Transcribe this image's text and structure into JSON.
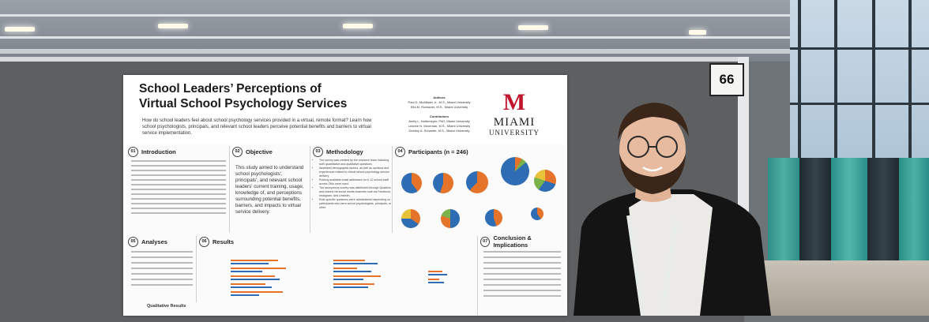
{
  "booth": {
    "number": "66"
  },
  "poster": {
    "title_line1": "School Leaders’ Perceptions of",
    "title_line2": "Virtual School Psychology Services",
    "question": "How do school leaders feel about school psychology services provided in a virtual, remote format? Learn how school psychologists, principals, and relevant school leaders perceive potential benefits and barriers to virtual service implementation.",
    "authors_heading": "Authors",
    "authors": [
      "Paul D. McAllister Jr., M.S., Miami University",
      "Ella M. Roessner, M.S., Miami University"
    ],
    "contributors_heading": "Contributors",
    "contributors": [
      "Amity L. Noltemeyer, PhD, Miami University",
      "Leanne N. Moorman, M.S., Miami University",
      "Destiny A. Schaefer, M.S., Miami University"
    ],
    "logo_letter": "M",
    "logo_name": "MIAMI",
    "logo_sub": "UNIVERSITY",
    "sections": {
      "intro": {
        "num": "01",
        "title": "Introduction"
      },
      "objective": {
        "num": "02",
        "title": "Objective",
        "text": "This study aimed to understand school psychologists', principals', and relevant school leaders' current training, usage, knowledge of, and perceptions surrounding potential benefits, barriers, and impacts to virtual service delivery."
      },
      "methodology": {
        "num": "03",
        "title": "Methodology",
        "bullets": [
          "The survey was created by the research team including both quantitative and qualitative questions",
          "Assessed demographic factors, as well as opinions and experiences related to virtual school psychology service delivery",
          "Publicly available email addresses for K-12 school staff across Ohio were used.",
          "The anonymous survey was distributed through Qualtrics and shared via social media channels such as Facebook, Instagram, and LinkedIn.",
          "Role-specific questions were administered depending on participants who were school psychologists, principals, or other."
        ]
      },
      "participants": {
        "num": "04",
        "title": "Participants (n = 246)"
      },
      "analyses": {
        "num": "05",
        "title": "Analyses"
      },
      "results": {
        "num": "06",
        "title": "Results"
      },
      "conclusion": {
        "num": "07",
        "title": "Conclusion & Implications"
      },
      "qualitative": {
        "title": "Qualitative Results"
      }
    }
  },
  "colors": {
    "miami_red": "#c3142d",
    "pie_blue": "#2e6db4",
    "pie_orange": "#e5732a",
    "pie_green": "#7db24a"
  }
}
